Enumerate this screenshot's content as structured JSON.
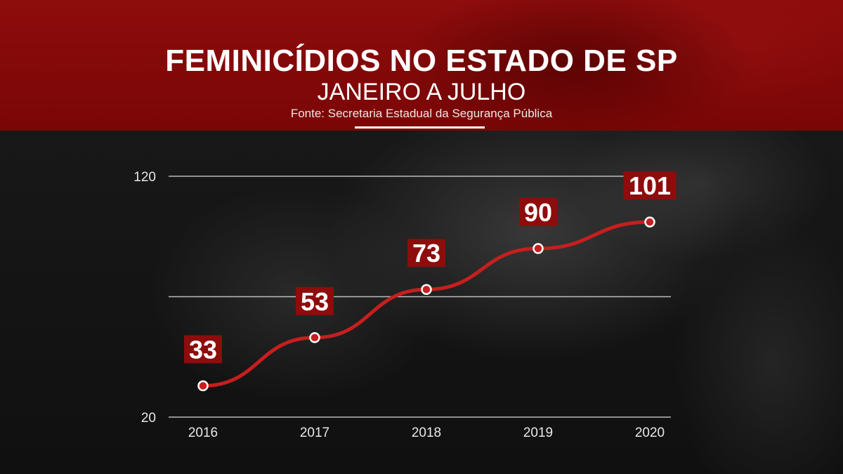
{
  "header": {
    "title": "FEMINICÍDIOS NO ESTADO DE SP",
    "subtitle": "JANEIRO A JULHO",
    "source": "Fonte: Secretaria Estadual da Segurança Pública"
  },
  "colors": {
    "header_red": "#8e0c0c",
    "line_red": "#c81e1e",
    "grid": "#d8d8d8",
    "text": "#ffffff"
  },
  "chart_data": {
    "type": "line",
    "title": "FEMINICÍDIOS NO ESTADO DE SP",
    "subtitle": "JANEIRO A JULHO",
    "categories": [
      "2016",
      "2017",
      "2018",
      "2019",
      "2020"
    ],
    "series": [
      {
        "values": [
          33,
          53,
          73,
          90,
          101
        ]
      }
    ],
    "data_labels": [
      "33",
      "53",
      "73",
      "90",
      "101"
    ],
    "ylim": [
      20,
      120
    ],
    "y_ticks": [
      "20",
      "120"
    ],
    "gridlines": [
      20,
      70,
      120
    ],
    "grid": true,
    "xlabel": "",
    "ylabel": ""
  }
}
